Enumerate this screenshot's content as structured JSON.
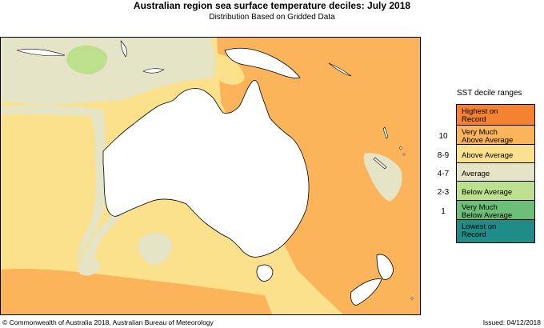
{
  "header": {
    "title": "Australian region sea surface temperature deciles:  July 2018",
    "subtitle": "Distribution Based on Gridded Data"
  },
  "legend": {
    "title": "SST decile ranges",
    "items": [
      {
        "range": "",
        "label": "Highest on\nRecord",
        "color": "#f58231"
      },
      {
        "range": "10",
        "label": "Very Much\nAbove Average",
        "color": "#fbb45a"
      },
      {
        "range": "8-9",
        "label": "Above Average",
        "color": "#fce18c"
      },
      {
        "range": "4-7",
        "label": "Average",
        "color": "#e6e4c6"
      },
      {
        "range": "2-3",
        "label": "Below Average",
        "color": "#bde08f"
      },
      {
        "range": "1",
        "label": "Very Much\nBelow Average",
        "color": "#6dbf77"
      },
      {
        "range": "",
        "label": "Lowest on\nRecord",
        "color": "#1f8c88"
      }
    ]
  },
  "map": {
    "land_color": "#ffffff",
    "outline_color": "#000000"
  },
  "footer": {
    "copyright": "© Commonwealth of Australia 2018, Australian Bureau of Meteorology",
    "issued": "Issued: 04/12/2018"
  }
}
